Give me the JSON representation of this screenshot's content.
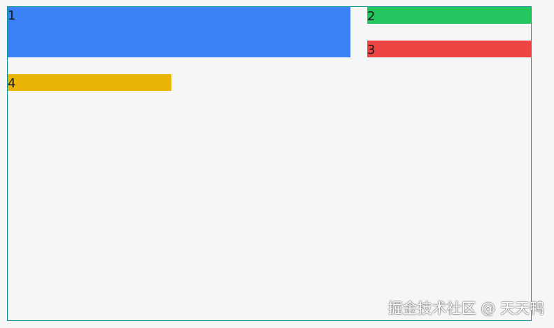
{
  "items": [
    {
      "label": "1",
      "color": "#3b82f6"
    },
    {
      "label": "2",
      "color": "#22c55e"
    },
    {
      "label": "3",
      "color": "#ef4444"
    },
    {
      "label": "4",
      "color": "#eab308"
    }
  ],
  "border_color": "#0e8f96",
  "watermark": "掘金技术社区 @ 天天鸭"
}
